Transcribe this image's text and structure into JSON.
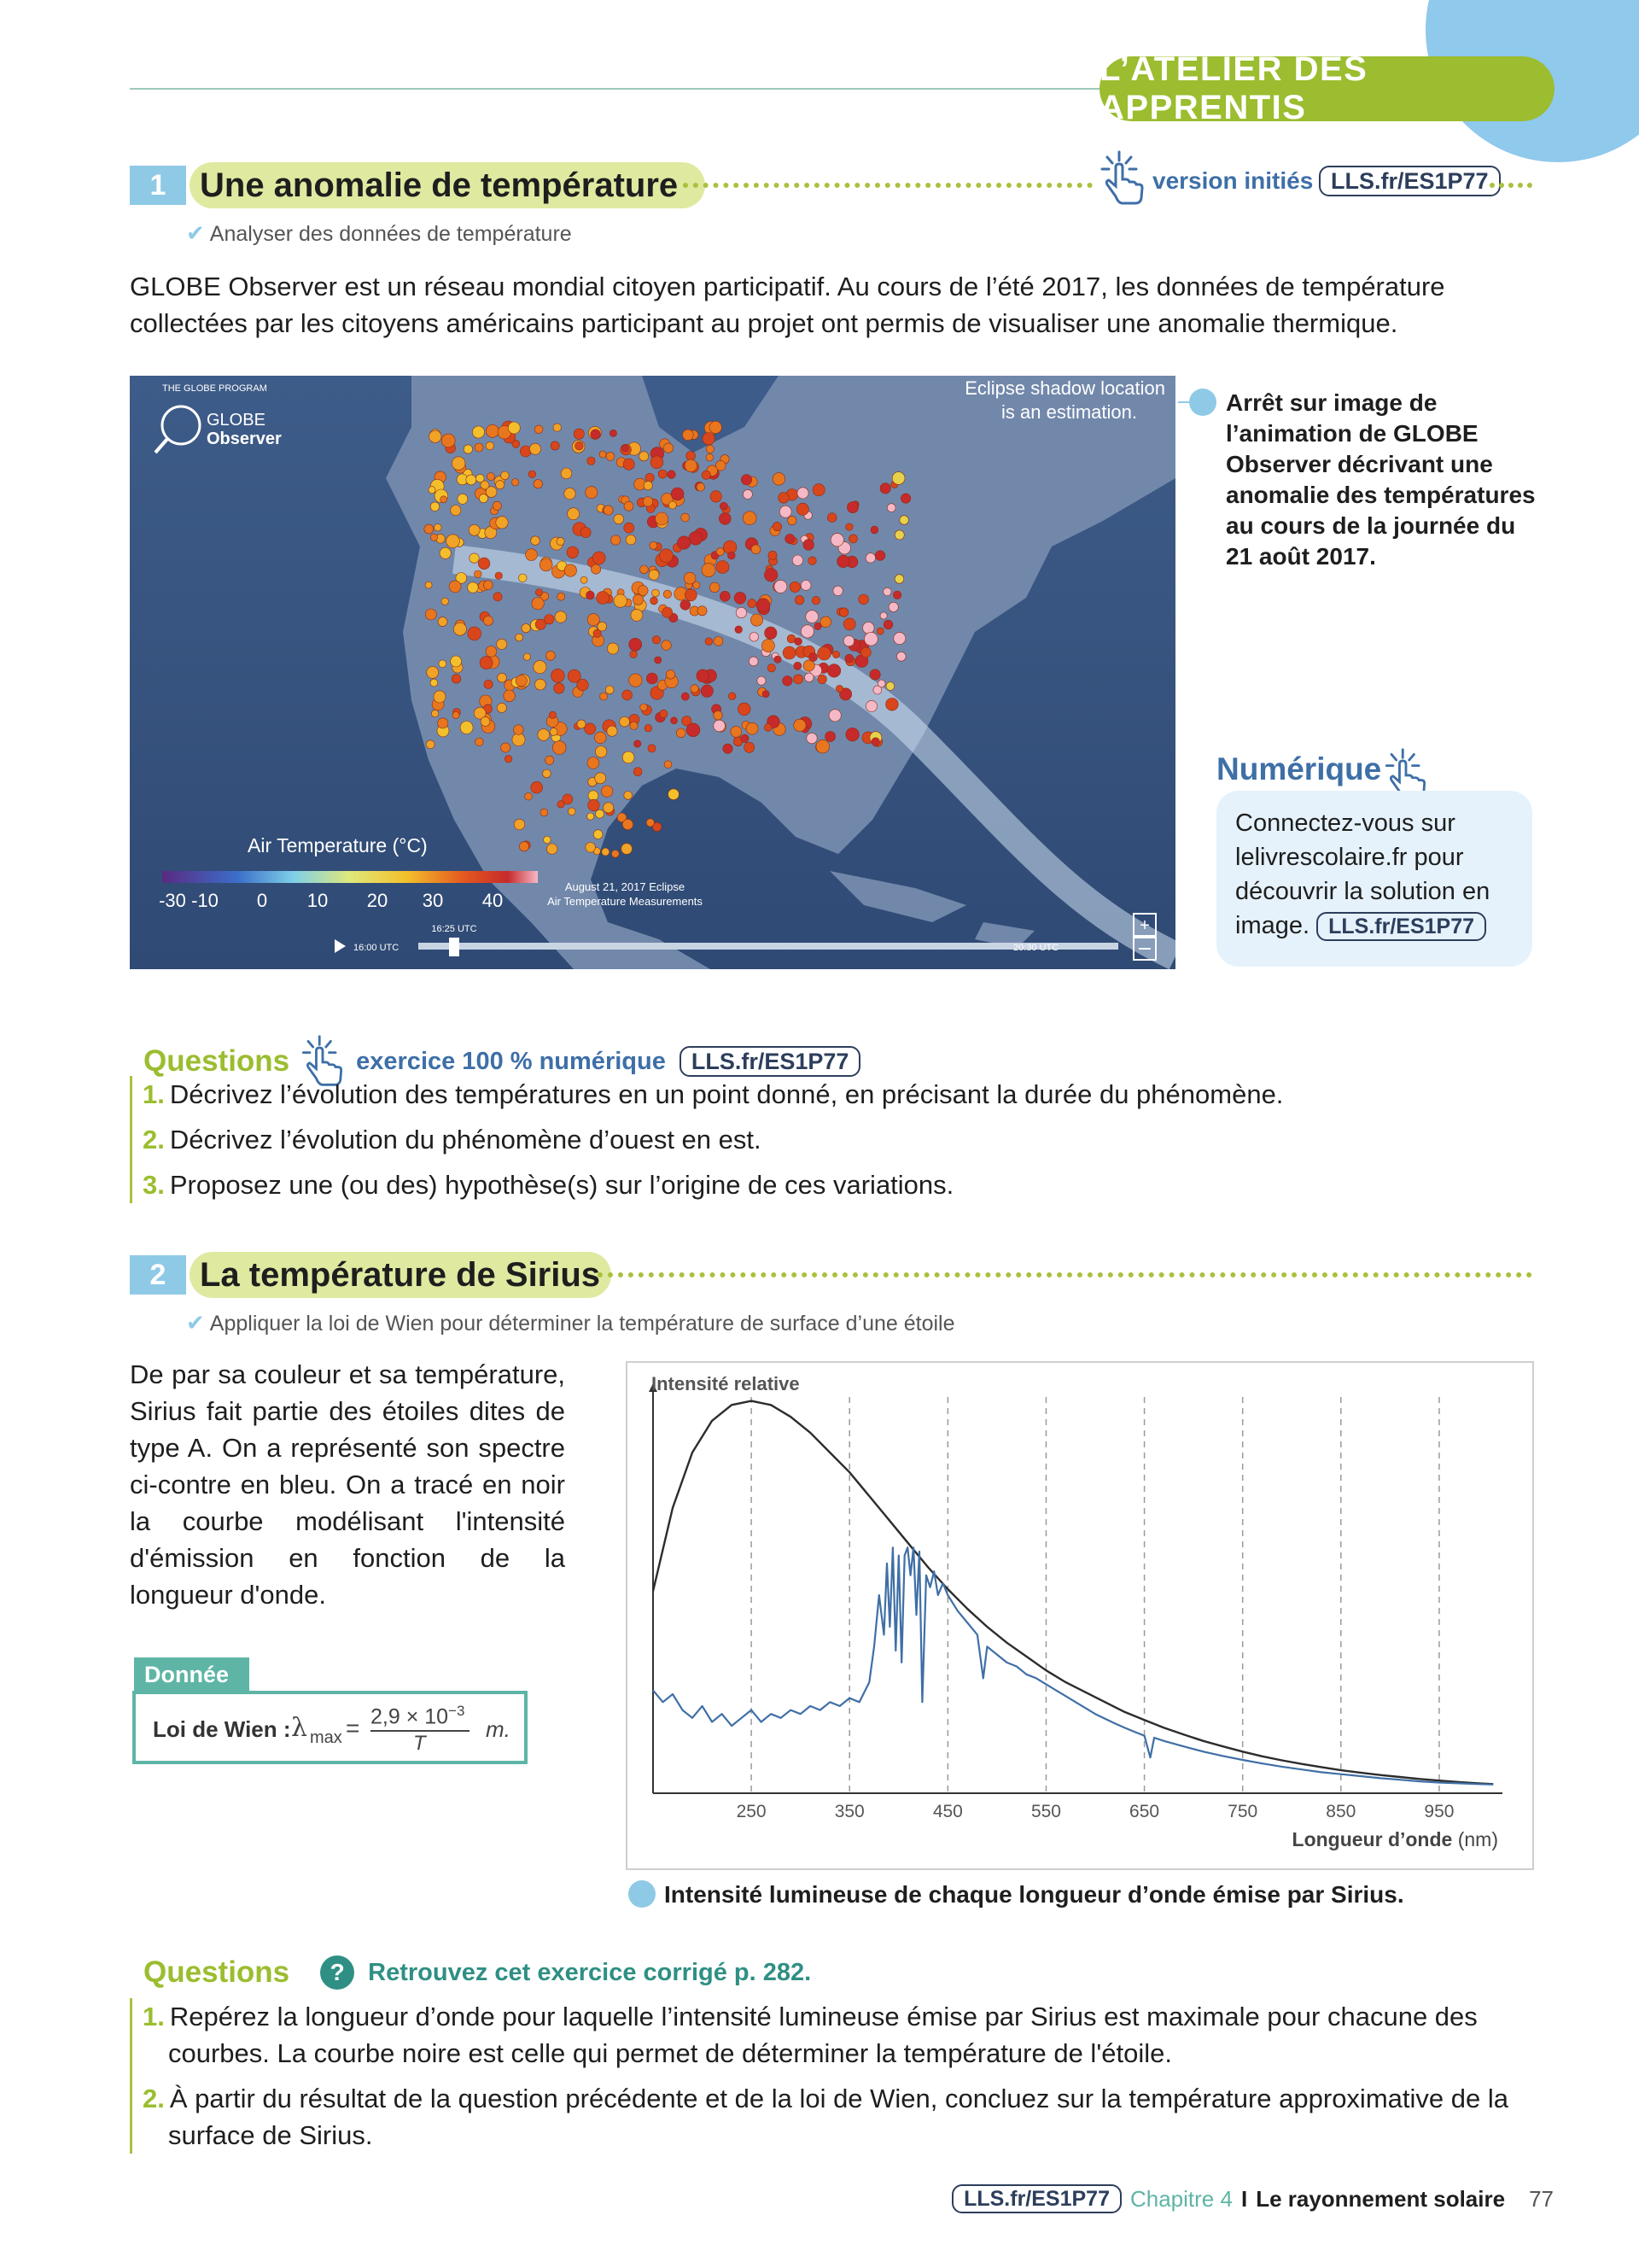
{
  "header": {
    "badge": "L’ATELIER DES APPRENTIS"
  },
  "ex1": {
    "number": "1",
    "title": "Une anomalie de température",
    "version_label": "version initiés",
    "version_link": "LLS.fr/ES1P77",
    "objective": "Analyser des données de température",
    "intro": "GLOBE Observer est un réseau mondial citoyen participatif. Au cours de l’été 2017, les données de température collectées par les citoyens américains participant au projet ont permis de visualiser une anomalie thermique.",
    "map": {
      "program": "THE GLOBE PROGRAM",
      "logo_line1": "GLOBE",
      "logo_line2": "Observer",
      "eclipse_note_1": "Eclipse shadow location",
      "eclipse_note_2": "is an estimation.",
      "legend_title": "Air Temperature (°C)",
      "legend_ticks": [
        "-30",
        "-10",
        "0",
        "10",
        "20",
        "30",
        "40"
      ],
      "date_1": "August 21, 2017 Eclipse",
      "date_2": "Air Temperature Measurements",
      "time_start": "16:00 UTC",
      "time_current": "16:25 UTC",
      "time_end": "20:30 UTC"
    },
    "caption": "Arrêt sur image de l’animation de GLOBE Observer décrivant une anomalie des températures au cours de la journée du 21 août 2017.",
    "numerique": {
      "title": "Numérique",
      "text": "Connectez-vous sur lelivrescolaire.fr pour découvrir la solution en image.",
      "link": "LLS.fr/ES1P77"
    },
    "questions": {
      "title": "Questions",
      "subtitle": "exercice 100 % numérique",
      "link": "LLS.fr/ES1P77",
      "items": [
        {
          "n": "1.",
          "text": "Décrivez l’évolution des températures en un point donné, en précisant la durée du phénomène."
        },
        {
          "n": "2.",
          "text": "Décrivez l’évolution du phénomène d’ouest en est."
        },
        {
          "n": "3.",
          "text": "Proposez une (ou des) hypothèse(s) sur l’origine de ces variations."
        }
      ]
    }
  },
  "ex2": {
    "number": "2",
    "title": "La température de Sirius",
    "objective": "Appliquer la loi de Wien pour déterminer la température de surface d’une étoile",
    "intro": "De par sa couleur et sa température, Sirius fait partie des étoiles dites de type A. On a représenté son spectre ci-contre en bleu. On a tracé en noir la courbe modélisant l'intensité d'émission en fonction de la longueur d'onde.",
    "donnee": {
      "tab": "Donnée",
      "label": "Loi de Wien :",
      "lambda": "λ",
      "sub": "max",
      "eq": "=",
      "numerator": "2,9 × 10",
      "exponent": "−3",
      "denominator": "T",
      "unit": "m."
    },
    "caption": "Intensité lumineuse de chaque longueur d’onde émise par Sirius.",
    "questions": {
      "title": "Questions",
      "help_icon": "?",
      "subtitle": "Retrouvez cet exercice corrigé p. 282.",
      "items": [
        {
          "n": "1.",
          "text": "Repérez la longueur d’onde pour laquelle l’intensité lumineuse émise par Sirius est maximale pour chacune des courbes. La courbe noire est celle qui permet de déterminer la température de l'étoile."
        },
        {
          "n": "2.",
          "text": "À partir du résultat de la question précédente et de la loi de Wien, concluez sur la température approximative de la surface de Sirius."
        }
      ]
    }
  },
  "chart_data": {
    "type": "line",
    "title": "",
    "ylabel": "Intensité relative",
    "xlabel": "Longueur d’onde",
    "xunit": "(nm)",
    "xlim": [
      150,
      1010
    ],
    "ylim": [
      0,
      1
    ],
    "xticks": [
      250,
      350,
      450,
      550,
      650,
      750,
      850,
      950
    ],
    "grid": "vertical dashed",
    "series": [
      {
        "color": "#2c2c2c",
        "x": [
          150,
          170,
          190,
          210,
          230,
          250,
          270,
          290,
          310,
          330,
          350,
          370,
          390,
          410,
          430,
          450,
          470,
          490,
          510,
          530,
          550,
          570,
          590,
          610,
          630,
          650,
          670,
          690,
          710,
          730,
          750,
          770,
          790,
          810,
          830,
          850,
          870,
          890,
          910,
          930,
          950,
          970,
          990,
          1005
        ],
        "y": [
          0.51,
          0.72,
          0.86,
          0.94,
          0.98,
          0.99,
          0.98,
          0.95,
          0.91,
          0.86,
          0.81,
          0.75,
          0.69,
          0.63,
          0.57,
          0.515,
          0.465,
          0.42,
          0.38,
          0.345,
          0.31,
          0.28,
          0.255,
          0.23,
          0.205,
          0.185,
          0.165,
          0.148,
          0.132,
          0.118,
          0.105,
          0.093,
          0.083,
          0.074,
          0.066,
          0.058,
          0.052,
          0.046,
          0.041,
          0.036,
          0.032,
          0.028,
          0.025,
          0.023
        ]
      },
      {
        "color": "#3f6fa6",
        "x": [
          150,
          160,
          170,
          180,
          190,
          200,
          210,
          220,
          230,
          240,
          250,
          260,
          270,
          280,
          290,
          300,
          310,
          320,
          330,
          340,
          350,
          360,
          370,
          375,
          380,
          385,
          388,
          391,
          394,
          397,
          400,
          403,
          406,
          409,
          412,
          415,
          418,
          421,
          424,
          428,
          432,
          436,
          440,
          445,
          450,
          460,
          470,
          480,
          486,
          490,
          500,
          510,
          520,
          530,
          540,
          550,
          560,
          570,
          580,
          590,
          600,
          610,
          620,
          630,
          640,
          650,
          656,
          660,
          670,
          690,
          710,
          730,
          750,
          770,
          790,
          810,
          830,
          850,
          870,
          890,
          910,
          930,
          950,
          970,
          990,
          1005
        ],
        "y": [
          0.26,
          0.23,
          0.25,
          0.21,
          0.19,
          0.22,
          0.18,
          0.2,
          0.17,
          0.19,
          0.21,
          0.18,
          0.2,
          0.19,
          0.21,
          0.2,
          0.22,
          0.21,
          0.23,
          0.22,
          0.24,
          0.23,
          0.28,
          0.37,
          0.5,
          0.4,
          0.58,
          0.42,
          0.62,
          0.36,
          0.6,
          0.33,
          0.6,
          0.62,
          0.55,
          0.62,
          0.45,
          0.61,
          0.23,
          0.55,
          0.52,
          0.56,
          0.5,
          0.53,
          0.5,
          0.46,
          0.43,
          0.4,
          0.29,
          0.37,
          0.35,
          0.33,
          0.32,
          0.3,
          0.29,
          0.275,
          0.26,
          0.245,
          0.23,
          0.215,
          0.2,
          0.188,
          0.176,
          0.165,
          0.155,
          0.145,
          0.09,
          0.14,
          0.132,
          0.118,
          0.105,
          0.094,
          0.084,
          0.075,
          0.067,
          0.06,
          0.053,
          0.048,
          0.043,
          0.038,
          0.034,
          0.03,
          0.027,
          0.025,
          0.023,
          0.022
        ]
      }
    ]
  },
  "footer": {
    "link": "LLS.fr/ES1P77",
    "chapter": "Chapitre 4",
    "separator": "I",
    "chapter_title": "Le rayonnement solaire",
    "page": "77"
  }
}
